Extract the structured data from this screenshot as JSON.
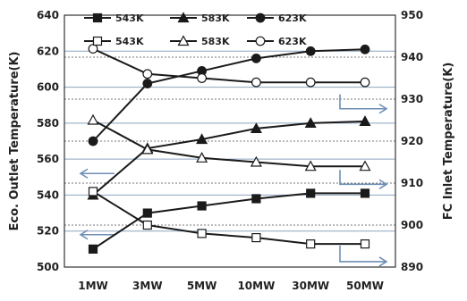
{
  "chart_data": {
    "type": "line",
    "categories": [
      "1MW",
      "3MW",
      "5MW",
      "10MW",
      "30MW",
      "50MW"
    ],
    "ylabel_left": "Eco. Outlet Temperature(K)",
    "ylabel_right": "FC Inlet Temperature(K)",
    "ylim_left": [
      500,
      640
    ],
    "yticks_left": [
      500,
      520,
      540,
      560,
      580,
      600,
      620,
      640
    ],
    "ylim_right": [
      890,
      950
    ],
    "yticks_right": [
      890,
      900,
      910,
      920,
      930,
      940,
      950
    ],
    "grid": "dotted horizontal",
    "legend_position": "top",
    "series": [
      {
        "name": "543K",
        "axis": "left",
        "marker": "filled-square",
        "values": [
          510,
          530,
          534,
          538,
          541,
          541
        ]
      },
      {
        "name": "583K",
        "axis": "left",
        "marker": "filled-triangle",
        "values": [
          540,
          566,
          571,
          577,
          580,
          581
        ]
      },
      {
        "name": "623K",
        "axis": "left",
        "marker": "filled-circle",
        "values": [
          570,
          602,
          609,
          616,
          620,
          621
        ]
      },
      {
        "name": "543K",
        "axis": "right",
        "marker": "open-square",
        "values": [
          908,
          900,
          898,
          897,
          895.5,
          895.5
        ]
      },
      {
        "name": "583K",
        "axis": "right",
        "marker": "open-triangle",
        "values": [
          925,
          918,
          916,
          915,
          914,
          914
        ]
      },
      {
        "name": "623K",
        "axis": "right",
        "marker": "open-circle",
        "values": [
          942,
          936,
          935,
          934,
          934,
          934
        ]
      }
    ],
    "colors": {
      "line": "#1a1a1a",
      "arrow": "#6f8fb5",
      "frame": "#333333"
    }
  }
}
